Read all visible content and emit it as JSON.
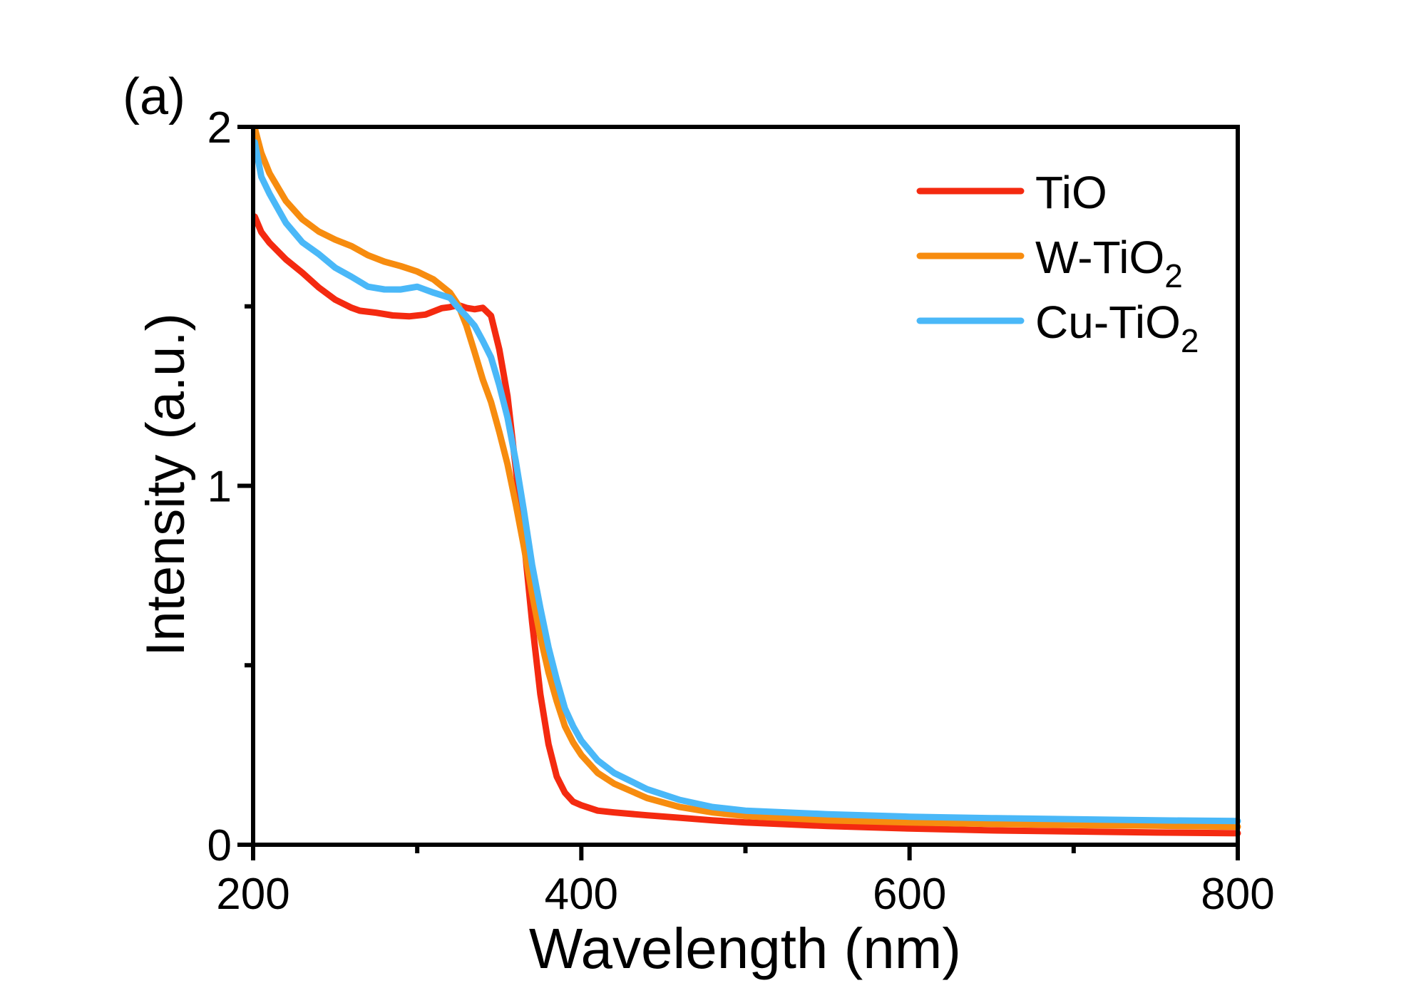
{
  "chart_data": {
    "type": "line",
    "panel_label": "(a)",
    "title": "",
    "xlabel": "Wavelength (nm)",
    "ylabel": "Intensity (a.u.)",
    "xlim": [
      200,
      800
    ],
    "ylim": [
      0,
      2
    ],
    "x_ticks": [
      200,
      400,
      600,
      800
    ],
    "x_minor_ticks": [
      300,
      500,
      700
    ],
    "y_ticks": [
      0,
      1,
      2
    ],
    "y_minor_ticks": [
      0.5,
      1.5
    ],
    "grid": false,
    "legend_position": "top-right",
    "series": [
      {
        "name": "TiO",
        "name_base": "TiO",
        "name_sub": "",
        "color": "#f42a10",
        "x": [
          201,
          205,
          210,
          220,
          230,
          240,
          250,
          260,
          265,
          275,
          285,
          295,
          305,
          315,
          320,
          325,
          330,
          335,
          340,
          345,
          350,
          355,
          360,
          365,
          370,
          375,
          380,
          385,
          390,
          395,
          400,
          410,
          420,
          440,
          460,
          480,
          500,
          550,
          600,
          650,
          700,
          750,
          800
        ],
        "y": [
          1.75,
          1.7,
          1.67,
          1.63,
          1.6,
          1.56,
          1.52,
          1.49,
          1.48,
          1.48,
          1.48,
          1.48,
          1.48,
          1.49,
          1.49,
          1.5,
          1.5,
          1.5,
          1.5,
          1.47,
          1.38,
          1.25,
          1.05,
          0.85,
          0.62,
          0.42,
          0.28,
          0.19,
          0.145,
          0.12,
          0.11,
          0.095,
          0.09,
          0.082,
          0.075,
          0.068,
          0.062,
          0.052,
          0.045,
          0.04,
          0.037,
          0.034,
          0.032
        ]
      },
      {
        "name": "W-TiO2",
        "name_base": "W-TiO",
        "name_sub": "2",
        "color": "#f78c0f",
        "x": [
          201,
          205,
          210,
          220,
          230,
          240,
          250,
          260,
          270,
          280,
          290,
          300,
          310,
          320,
          325,
          330,
          335,
          340,
          345,
          350,
          355,
          360,
          365,
          370,
          375,
          380,
          385,
          390,
          395,
          400,
          410,
          420,
          440,
          460,
          480,
          500,
          550,
          600,
          650,
          700,
          750,
          800
        ],
        "y": [
          1.99,
          1.92,
          1.87,
          1.8,
          1.75,
          1.71,
          1.68,
          1.66,
          1.64,
          1.63,
          1.62,
          1.6,
          1.57,
          1.53,
          1.5,
          1.45,
          1.38,
          1.3,
          1.23,
          1.15,
          1.06,
          0.95,
          0.83,
          0.7,
          0.58,
          0.48,
          0.4,
          0.33,
          0.285,
          0.25,
          0.2,
          0.17,
          0.13,
          0.105,
          0.09,
          0.08,
          0.068,
          0.062,
          0.058,
          0.055,
          0.053,
          0.05
        ]
      },
      {
        "name": "Cu-TiO2",
        "name_base": "Cu-TiO",
        "name_sub": "2",
        "color": "#4ab8f8",
        "x": [
          201,
          205,
          210,
          220,
          230,
          240,
          250,
          260,
          270,
          280,
          290,
          300,
          310,
          320,
          325,
          330,
          335,
          340,
          345,
          350,
          355,
          360,
          365,
          370,
          375,
          380,
          385,
          390,
          395,
          400,
          410,
          420,
          440,
          460,
          480,
          500,
          550,
          600,
          650,
          700,
          750,
          800
        ],
        "y": [
          1.95,
          1.86,
          1.82,
          1.74,
          1.68,
          1.64,
          1.6,
          1.58,
          1.56,
          1.555,
          1.55,
          1.55,
          1.53,
          1.52,
          1.5,
          1.48,
          1.45,
          1.4,
          1.35,
          1.28,
          1.19,
          1.07,
          0.93,
          0.78,
          0.66,
          0.55,
          0.46,
          0.38,
          0.33,
          0.29,
          0.235,
          0.2,
          0.155,
          0.125,
          0.105,
          0.095,
          0.085,
          0.078,
          0.074,
          0.071,
          0.068,
          0.066
        ]
      }
    ]
  }
}
